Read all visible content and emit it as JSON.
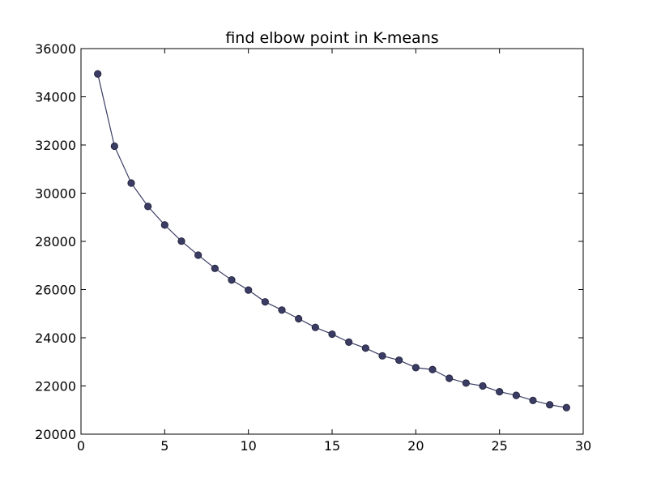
{
  "chart_data": {
    "type": "line",
    "title": "find elbow point in K-means",
    "xlabel": "",
    "ylabel": "",
    "xlim": [
      0,
      30
    ],
    "ylim": [
      20000,
      36000
    ],
    "xticks": [
      0,
      5,
      10,
      15,
      20,
      25,
      30
    ],
    "yticks": [
      20000,
      22000,
      24000,
      26000,
      28000,
      30000,
      32000,
      34000,
      36000
    ],
    "grid": false,
    "legend": "none",
    "line_color": "#3a3c63",
    "marker": "circle",
    "series": [
      {
        "x": [
          1,
          2,
          3,
          4,
          5,
          6,
          7,
          8,
          9,
          10,
          11,
          12,
          13,
          14,
          15,
          16,
          17,
          18,
          19,
          20,
          21,
          22,
          23,
          24,
          25,
          26,
          27,
          28,
          29
        ],
        "values": [
          34950,
          31950,
          30420,
          29450,
          28680,
          28010,
          27430,
          26880,
          26400,
          25980,
          25490,
          25150,
          24790,
          24430,
          24150,
          23820,
          23570,
          23250,
          23070,
          22760,
          22680,
          22320,
          22120,
          22000,
          21760,
          21610,
          21400,
          21220,
          21100
        ]
      }
    ]
  }
}
